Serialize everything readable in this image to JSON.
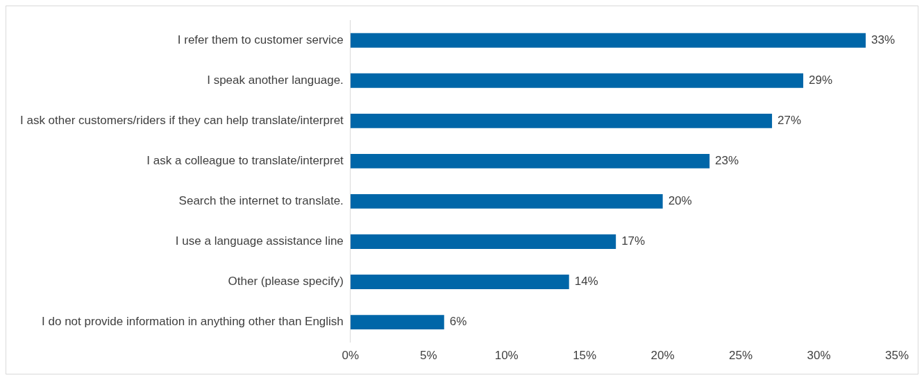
{
  "chart_data": {
    "type": "bar",
    "orientation": "horizontal",
    "categories": [
      "I refer them to customer service",
      "I speak another language.",
      "I ask other customers/riders if they can help translate/interpret",
      "I ask a colleague to translate/interpret",
      "Search the internet to translate.",
      "I use a language assistance line",
      "Other (please specify)",
      "I do not provide information in anything other than English"
    ],
    "values": [
      33,
      29,
      27,
      23,
      20,
      17,
      14,
      6
    ],
    "value_labels": [
      "33%",
      "29%",
      "27%",
      "23%",
      "20%",
      "17%",
      "14%",
      "6%"
    ],
    "color": "#0066a8",
    "xlim": [
      0,
      35
    ],
    "xticks": [
      {
        "value": 0,
        "label": "0%"
      },
      {
        "value": 5,
        "label": "5%"
      },
      {
        "value": 10,
        "label": "10%"
      },
      {
        "value": 15,
        "label": "15%"
      },
      {
        "value": 20,
        "label": "20%"
      },
      {
        "value": 25,
        "label": "25%"
      },
      {
        "value": 30,
        "label": "30%"
      },
      {
        "value": 35,
        "label": "35%"
      }
    ],
    "grid": false,
    "legend": false
  }
}
